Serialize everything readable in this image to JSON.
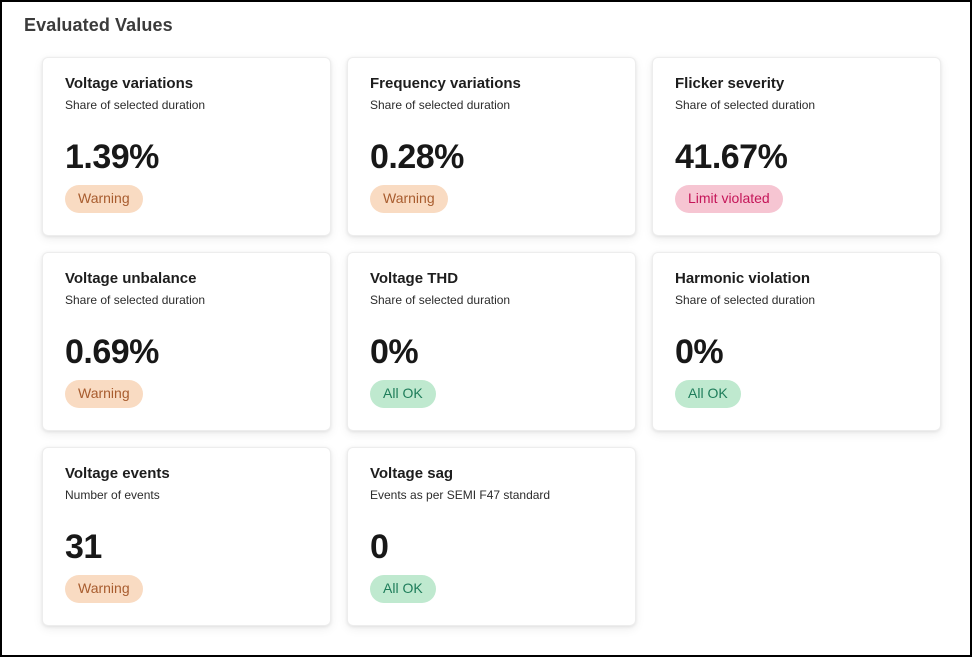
{
  "page": {
    "title": "Evaluated Values"
  },
  "status_colors": {
    "warning": {
      "bg": "#f9dbc2",
      "text": "#a85c2e"
    },
    "violation": {
      "bg": "#f6c5d2",
      "text": "#c51659"
    },
    "ok": {
      "bg": "#bfe9cf",
      "text": "#1e7d5a"
    }
  },
  "cards": [
    {
      "title": "Voltage variations",
      "subtitle": "Share of selected duration",
      "value": "1.39%",
      "status_label": "Warning",
      "status_type": "warning"
    },
    {
      "title": "Frequency variations",
      "subtitle": "Share of selected duration",
      "value": "0.28%",
      "status_label": "Warning",
      "status_type": "warning"
    },
    {
      "title": "Flicker severity",
      "subtitle": "Share of selected duration",
      "value": "41.67%",
      "status_label": "Limit violated",
      "status_type": "violation"
    },
    {
      "title": "Voltage unbalance",
      "subtitle": "Share of selected duration",
      "value": "0.69%",
      "status_label": "Warning",
      "status_type": "warning"
    },
    {
      "title": "Voltage THD",
      "subtitle": "Share of selected duration",
      "value": "0%",
      "status_label": "All OK",
      "status_type": "ok"
    },
    {
      "title": "Harmonic violation",
      "subtitle": "Share of selected duration",
      "value": "0%",
      "status_label": "All OK",
      "status_type": "ok"
    },
    {
      "title": "Voltage events",
      "subtitle": "Number of events",
      "value": "31",
      "status_label": "Warning",
      "status_type": "warning"
    },
    {
      "title": "Voltage sag",
      "subtitle": "Events as per SEMI F47 standard",
      "value": "0",
      "status_label": "All OK",
      "status_type": "ok"
    }
  ]
}
